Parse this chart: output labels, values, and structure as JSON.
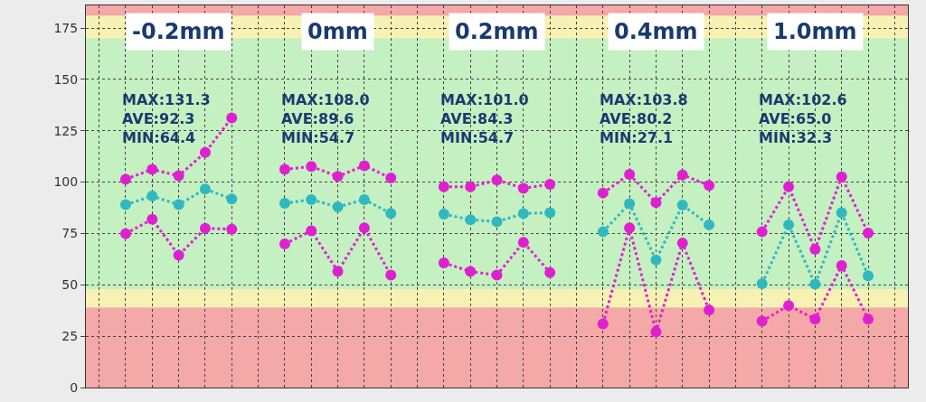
{
  "chart_data": {
    "type": "line",
    "categories": [
      null,
      null,
      null,
      null,
      null,
      null,
      null,
      null,
      null,
      null,
      null,
      null,
      null,
      null,
      null,
      null,
      null,
      null,
      null,
      null,
      null,
      null,
      null,
      null,
      null,
      null,
      null,
      null,
      null,
      null,
      null
    ],
    "series": [
      {
        "color": "#e020d0",
        "marker": "circle",
        "line_style": "dotted",
        "values": [
          null,
          101.4,
          106.2,
          103.1,
          114.4,
          131.3,
          null,
          106.2,
          107.6,
          102.8,
          108.0,
          102.0,
          null,
          97.7,
          97.7,
          101.0,
          97.0,
          98.9,
          null,
          94.7,
          103.8,
          90.0,
          103.5,
          98.4,
          null,
          75.8,
          97.7,
          67.3,
          102.6,
          75.2,
          null
        ]
      },
      {
        "color": "#e020d0",
        "marker": "circle",
        "line_style": "dotted",
        "values": [
          null,
          74.9,
          81.9,
          64.4,
          77.5,
          77.1,
          null,
          69.9,
          76.3,
          56.5,
          77.7,
          54.7,
          null,
          60.7,
          56.5,
          54.7,
          70.7,
          56.0,
          null,
          31.0,
          77.7,
          27.1,
          70.3,
          37.7,
          null,
          32.3,
          39.9,
          33.3,
          59.4,
          33.3,
          null
        ]
      },
      {
        "color": "#30b8c0",
        "marker": "circle",
        "line_style": "dotted",
        "values": [
          null,
          89.0,
          93.2,
          89.0,
          96.6,
          91.8,
          null,
          89.7,
          91.5,
          87.9,
          91.5,
          84.8,
          null,
          84.4,
          81.7,
          80.7,
          84.7,
          85.1,
          null,
          75.8,
          89.5,
          62.1,
          88.8,
          79.2,
          null,
          50.6,
          79.2,
          50.3,
          85.1,
          54.4,
          null
        ]
      }
    ],
    "ylim": [
      0,
      186
    ],
    "yticks": [
      0,
      25,
      50,
      75,
      100,
      125,
      150,
      175
    ],
    "grid": true,
    "tick_labels": "y",
    "bands": [
      {
        "axis": "y",
        "from": 0,
        "to": 39,
        "color": "#f5a8a8"
      },
      {
        "axis": "y",
        "from": 39,
        "to": 48,
        "color": "#f7f2b4"
      },
      {
        "axis": "y",
        "from": 48,
        "to": 170,
        "color": "#c4f0c2"
      },
      {
        "axis": "y",
        "from": 170,
        "to": 181,
        "color": "#f7f2b4"
      },
      {
        "axis": "y",
        "from": 181,
        "to": 186,
        "color": "#f5a8a8"
      }
    ],
    "annotations": [
      "-0.2mm",
      "0mm",
      "0.2mm",
      "0.4mm",
      "1.0mm",
      "MAX:131.3\nAVE:92.3\nMIN:64.4",
      "MAX:108.0\nAVE:89.6\nMIN:54.7",
      "MAX:101.0\nAVE:84.3\nMIN:54.7",
      "MAX:103.8\nAVE:80.2\nMIN:27.1",
      "MAX:102.6\nAVE:65.0\nMIN:32.3"
    ]
  }
}
